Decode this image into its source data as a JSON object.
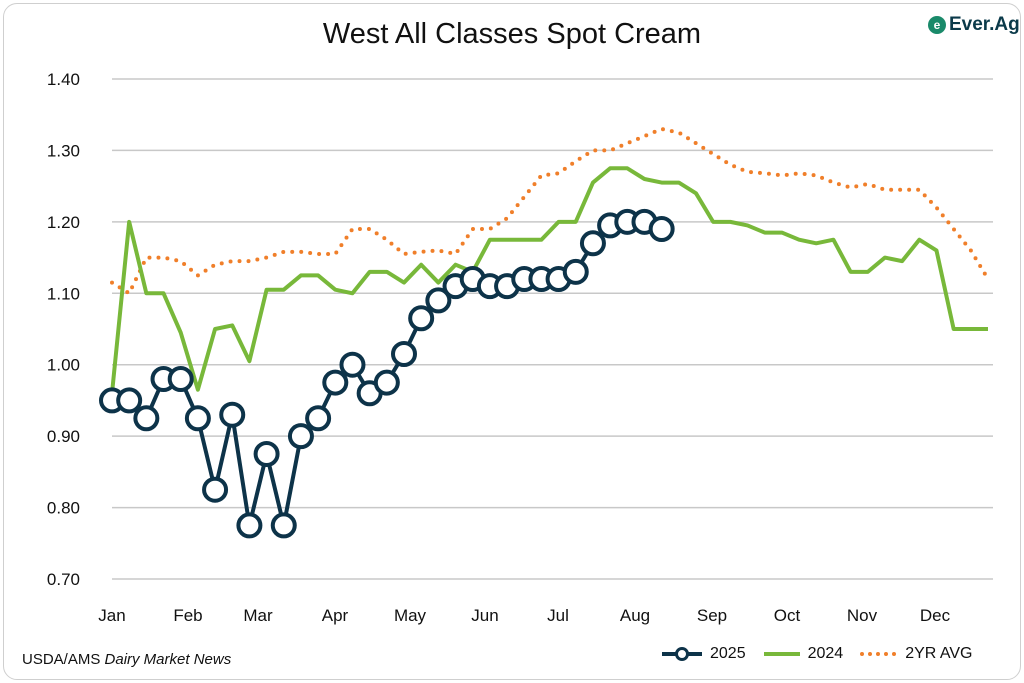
{
  "chart_data": {
    "type": "line",
    "title": "West All Classes Spot Cream",
    "xlabel": "",
    "ylabel": "",
    "ylim": [
      0.7,
      1.4
    ],
    "yticks": [
      "0.70",
      "0.80",
      "0.90",
      "1.00",
      "1.10",
      "1.20",
      "1.30",
      "1.40"
    ],
    "xticks": [
      "Jan",
      "Feb",
      "Mar",
      "Apr",
      "May",
      "Jun",
      "Jul",
      "Aug",
      "Sep",
      "Oct",
      "Nov",
      "Dec"
    ],
    "x_unit": "week of year (0-51)",
    "grid": true,
    "legend_position": "bottom-right",
    "series": [
      {
        "name": "2025",
        "color": "#0d3349",
        "style": "line-circle-markers",
        "values": [
          0.95,
          0.95,
          0.925,
          0.98,
          0.98,
          0.925,
          0.825,
          0.93,
          0.775,
          0.875,
          0.775,
          0.9,
          0.925,
          0.975,
          1.0,
          0.96,
          0.975,
          1.015,
          1.065,
          1.09,
          1.11,
          1.12,
          1.11,
          1.11,
          1.12,
          1.12,
          1.12,
          1.13,
          1.17,
          1.195,
          1.2,
          1.2,
          1.19
        ]
      },
      {
        "name": "2024",
        "color": "#78b83a",
        "style": "solid",
        "values": [
          0.96,
          1.2,
          1.1,
          1.1,
          1.045,
          0.965,
          1.05,
          1.055,
          1.005,
          1.105,
          1.105,
          1.125,
          1.125,
          1.105,
          1.1,
          1.13,
          1.13,
          1.115,
          1.14,
          1.115,
          1.14,
          1.13,
          1.175,
          1.175,
          1.175,
          1.175,
          1.2,
          1.2,
          1.255,
          1.275,
          1.275,
          1.26,
          1.255,
          1.255,
          1.24,
          1.2,
          1.2,
          1.195,
          1.185,
          1.185,
          1.175,
          1.17,
          1.175,
          1.13,
          1.13,
          1.15,
          1.145,
          1.175,
          1.16,
          1.05,
          1.05,
          1.05
        ]
      },
      {
        "name": "2YR AVG",
        "color": "#f07f2a",
        "style": "dotted",
        "values": [
          1.115,
          1.1,
          1.15,
          1.15,
          1.145,
          1.125,
          1.14,
          1.145,
          1.145,
          1.15,
          1.158,
          1.158,
          1.155,
          1.155,
          1.19,
          1.19,
          1.175,
          1.155,
          1.158,
          1.16,
          1.155,
          1.19,
          1.19,
          1.205,
          1.235,
          1.265,
          1.268,
          1.285,
          1.3,
          1.3,
          1.31,
          1.32,
          1.33,
          1.325,
          1.31,
          1.295,
          1.28,
          1.27,
          1.268,
          1.265,
          1.268,
          1.265,
          1.255,
          1.248,
          1.253,
          1.245,
          1.245,
          1.245,
          1.22,
          1.19,
          1.16,
          1.12
        ]
      }
    ]
  },
  "logo": {
    "text": "Ever.Ag"
  },
  "source": {
    "prefix": "USDA/AMS ",
    "italic": "Dairy Market News"
  }
}
